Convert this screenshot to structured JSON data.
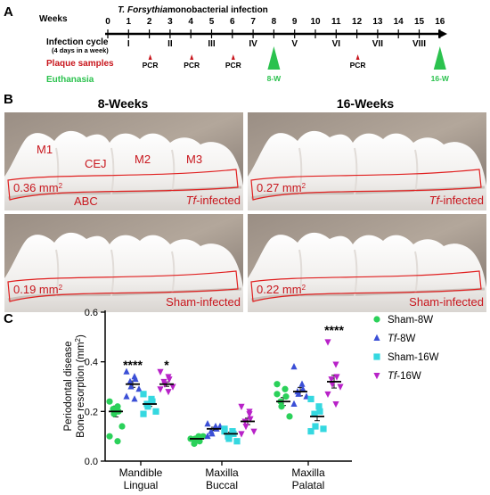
{
  "panelA": {
    "letter": "A",
    "weeks_label": "Weeks",
    "title_prefix": "T. Forsythia",
    "title_suffix": " monobacterial infection",
    "week_ticks": [
      "0",
      "1",
      "2",
      "3",
      "4",
      "5",
      "6",
      "7",
      "8",
      "9",
      "10",
      "11",
      "12",
      "13",
      "14",
      "15",
      "16"
    ],
    "cycle_label": "Infection cycle",
    "cycle_sub": "(4 days in a week)",
    "cycles": [
      "I",
      "II",
      "III",
      "IV",
      "V",
      "VI",
      "VII",
      "VIII"
    ],
    "plaque_label": "Plaque samples",
    "pcr_label": "PCR",
    "pcr_weeks": [
      2,
      4,
      6,
      12
    ],
    "euthanasia_label": "Euthanasia",
    "euth_points": [
      {
        "week": 8,
        "label": "8-W"
      },
      {
        "week": 16,
        "label": "16-W"
      }
    ],
    "colors": {
      "plaque": "#c8161d",
      "euthanasia": "#2bc24e"
    }
  },
  "panelB": {
    "letter": "B",
    "col_headers": [
      "8-Weeks",
      "16-Weeks"
    ],
    "photos": [
      {
        "area_value": "0.36 mm",
        "group": "infected"
      },
      {
        "area_value": "0.27 mm",
        "group": "infected"
      },
      {
        "area_value": "0.19 mm",
        "group": "sham"
      },
      {
        "area_value": "0.22 mm",
        "group": "sham"
      }
    ],
    "area_sup": "2",
    "tf_prefix": "Tf",
    "infected_suffix": "-infected",
    "sham_label": "Sham-infected",
    "tooth_labels": {
      "m1": "M1",
      "m2": "M2",
      "m3": "M3",
      "cej": "CEJ",
      "abc": "ABC"
    }
  },
  "panelC": {
    "letter": "C"
  },
  "chart_data": {
    "type": "scatter",
    "ylabel_line1": "Periodontal disease",
    "ylabel_line2": "Bone resorption (mm",
    "ylabel_sup": "2",
    "ylabel_close": ")",
    "ylim": [
      0.0,
      0.6
    ],
    "yticks": [
      "0.0",
      "0.2",
      "0.4",
      "0.6"
    ],
    "categories": [
      {
        "line1": "Mandible",
        "line2": "Lingual"
      },
      {
        "line1": "Maxilla",
        "line2": "Buccal"
      },
      {
        "line1": "Maxilla",
        "line2": "Palatal"
      }
    ],
    "series": [
      {
        "name": "Sham-8W",
        "name_prefix": "",
        "name_main": "Sham-8W",
        "color": "#2bd15a",
        "marker": "circle",
        "mean": [
          0.2,
          0.09,
          0.24
        ],
        "values": [
          [
            0.24,
            0.22,
            0.2,
            0.21,
            0.19,
            0.14,
            0.1,
            0.08
          ],
          [
            0.09,
            0.1,
            0.08,
            0.07,
            0.09,
            0.1
          ],
          [
            0.31,
            0.29,
            0.26,
            0.24,
            0.22,
            0.18,
            0.27
          ]
        ]
      },
      {
        "name": "Tf-8W",
        "name_prefix": "Tf",
        "name_main": "-8W",
        "color": "#3b4fd6",
        "marker": "triangle-up",
        "mean": [
          0.31,
          0.13,
          0.28
        ],
        "values": [
          [
            0.36,
            0.34,
            0.33,
            0.32,
            0.3,
            0.29,
            0.26,
            0.25
          ],
          [
            0.15,
            0.14,
            0.13,
            0.12,
            0.11,
            0.14,
            0.1
          ],
          [
            0.38,
            0.31,
            0.29,
            0.28,
            0.27,
            0.26,
            0.23
          ]
        ]
      },
      {
        "name": "Sham-16W",
        "name_prefix": "",
        "name_main": "Sham-16W",
        "color": "#35d8e0",
        "marker": "square",
        "mean": [
          0.23,
          0.11,
          0.18
        ],
        "values": [
          [
            0.27,
            0.25,
            0.24,
            0.23,
            0.22,
            0.2,
            0.19
          ],
          [
            0.13,
            0.12,
            0.11,
            0.1,
            0.09,
            0.08,
            0.12
          ],
          [
            0.25,
            0.22,
            0.2,
            0.19,
            0.14,
            0.13,
            0.12
          ]
        ]
      },
      {
        "name": "Tf-16W",
        "name_prefix": "Tf",
        "name_main": "-16W",
        "color": "#b822c8",
        "marker": "triangle-down",
        "mean": [
          0.31,
          0.16,
          0.32
        ],
        "values": [
          [
            0.36,
            0.34,
            0.33,
            0.32,
            0.31,
            0.3,
            0.29,
            0.28
          ],
          [
            0.22,
            0.19,
            0.17,
            0.16,
            0.14,
            0.12,
            0.11,
            0.2
          ],
          [
            0.48,
            0.39,
            0.34,
            0.33,
            0.31,
            0.3,
            0.27,
            0.23
          ]
        ]
      }
    ],
    "annotations": [
      {
        "category": 0,
        "series": 1,
        "text": "****",
        "y": 0.37
      },
      {
        "category": 0,
        "series": 3,
        "text": "*",
        "y": 0.37
      },
      {
        "category": 2,
        "series": 3,
        "text": "****",
        "y": 0.51
      }
    ]
  }
}
